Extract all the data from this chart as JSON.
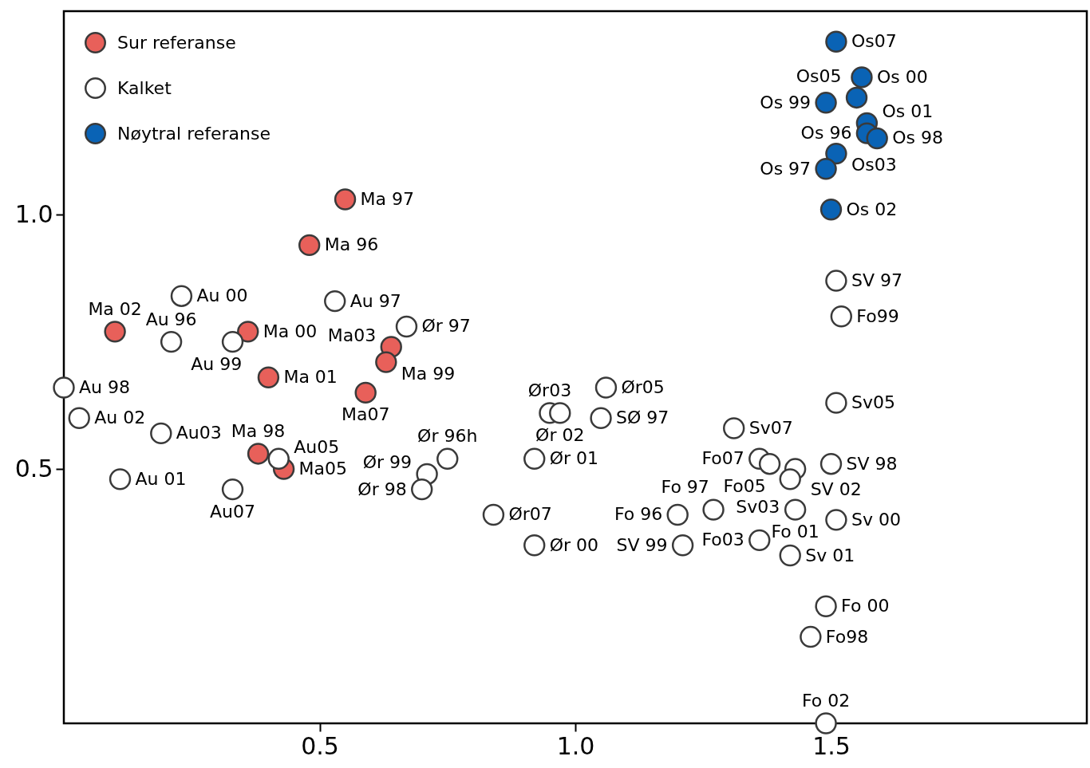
{
  "chart_data": {
    "type": "scatter",
    "xlim": [
      0,
      2
    ],
    "ylim": [
      0,
      1.4
    ],
    "xticks": [
      {
        "value": 0.5,
        "label": "0.5"
      },
      {
        "value": 1,
        "label": "1.0"
      },
      {
        "value": 1.5,
        "label": "1.5"
      }
    ],
    "yticks": [
      {
        "value": 0.5,
        "label": "0.5"
      },
      {
        "value": 1,
        "label": "1.0"
      }
    ],
    "legend": "top left",
    "marker": "circle",
    "series": [
      {
        "name": "Sur referanse",
        "color": "#e8605a",
        "x": [
          0.55,
          0.48,
          0.1,
          0.36,
          0.4,
          0.64,
          0.63,
          0.59,
          0.38,
          0.43
        ],
        "values": [
          1.03,
          0.94,
          0.77,
          0.77,
          0.68,
          0.74,
          0.71,
          0.65,
          0.53,
          0.5
        ],
        "value_labels": [
          "Ma 97",
          "Ma 96",
          "Ma 02",
          "Ma 00",
          "Ma 01",
          "Ma03",
          "Ma 99",
          "Ma07",
          "Ma 98",
          "Ma05"
        ]
      },
      {
        "name": "Kalket",
        "color": "#ffffff",
        "x": [
          0.23,
          0.53,
          0.21,
          0.33,
          0.0,
          0.03,
          0.19,
          0.11,
          0.33,
          0.42,
          0.67,
          0.95,
          0.97,
          1.06,
          1.05,
          0.75,
          0.71,
          0.7,
          0.92,
          0.84,
          0.92,
          1.51,
          1.52,
          1.51,
          1.31,
          1.36,
          1.38,
          1.43,
          1.5,
          1.42,
          1.2,
          1.27,
          1.43,
          1.51,
          1.21,
          1.36,
          1.42,
          1.49,
          1.46,
          1.49
        ],
        "values": [
          0.84,
          0.83,
          0.75,
          0.75,
          0.66,
          0.6,
          0.57,
          0.48,
          0.46,
          0.52,
          0.78,
          0.61,
          0.61,
          0.66,
          0.6,
          0.52,
          0.49,
          0.46,
          0.52,
          0.41,
          0.35,
          0.87,
          0.8,
          0.63,
          0.58,
          0.52,
          0.51,
          0.5,
          0.51,
          0.48,
          0.41,
          0.42,
          0.42,
          0.4,
          0.35,
          0.36,
          0.33,
          0.23,
          0.17,
          0.0
        ],
        "value_labels": [
          "Au 00",
          "Au 97",
          "Au 96",
          "Au 99",
          "Au 98",
          "Au 02",
          "Au03",
          "Au 01",
          "Au07",
          "Au05",
          "Ør 97",
          "Ør03",
          "Ør 02",
          "Ør05",
          "SØ 97",
          "Ør 96h",
          "Ør 99",
          "Ør 98",
          "Ør 01",
          "Ør07",
          "Ør 00",
          "SV 97",
          "Fo99",
          "Sv05",
          "Sv07",
          "Fo07",
          "Fo05",
          "SV 02",
          "SV 98",
          "Sv03",
          "Fo 96",
          "Fo 97",
          "Fo 01",
          "Sv 00",
          "SV 99",
          "Fo03",
          "Sv 01",
          "Fo 00",
          "Fo98",
          "Fo 02"
        ]
      },
      {
        "name": "Nøytral referanse",
        "color": "#0a63b5",
        "x": [
          1.51,
          1.56,
          1.55,
          1.49,
          1.57,
          1.57,
          1.59,
          1.51,
          1.49,
          1.5
        ],
        "values": [
          1.34,
          1.27,
          1.23,
          1.22,
          1.18,
          1.16,
          1.15,
          1.12,
          1.09,
          1.01
        ],
        "value_labels": [
          "Os07",
          "Os 00",
          "Os05",
          "Os 99",
          "Os 01",
          "Os 96",
          "Os 98",
          "Os03",
          "Os 97",
          "Os 02"
        ]
      }
    ]
  }
}
